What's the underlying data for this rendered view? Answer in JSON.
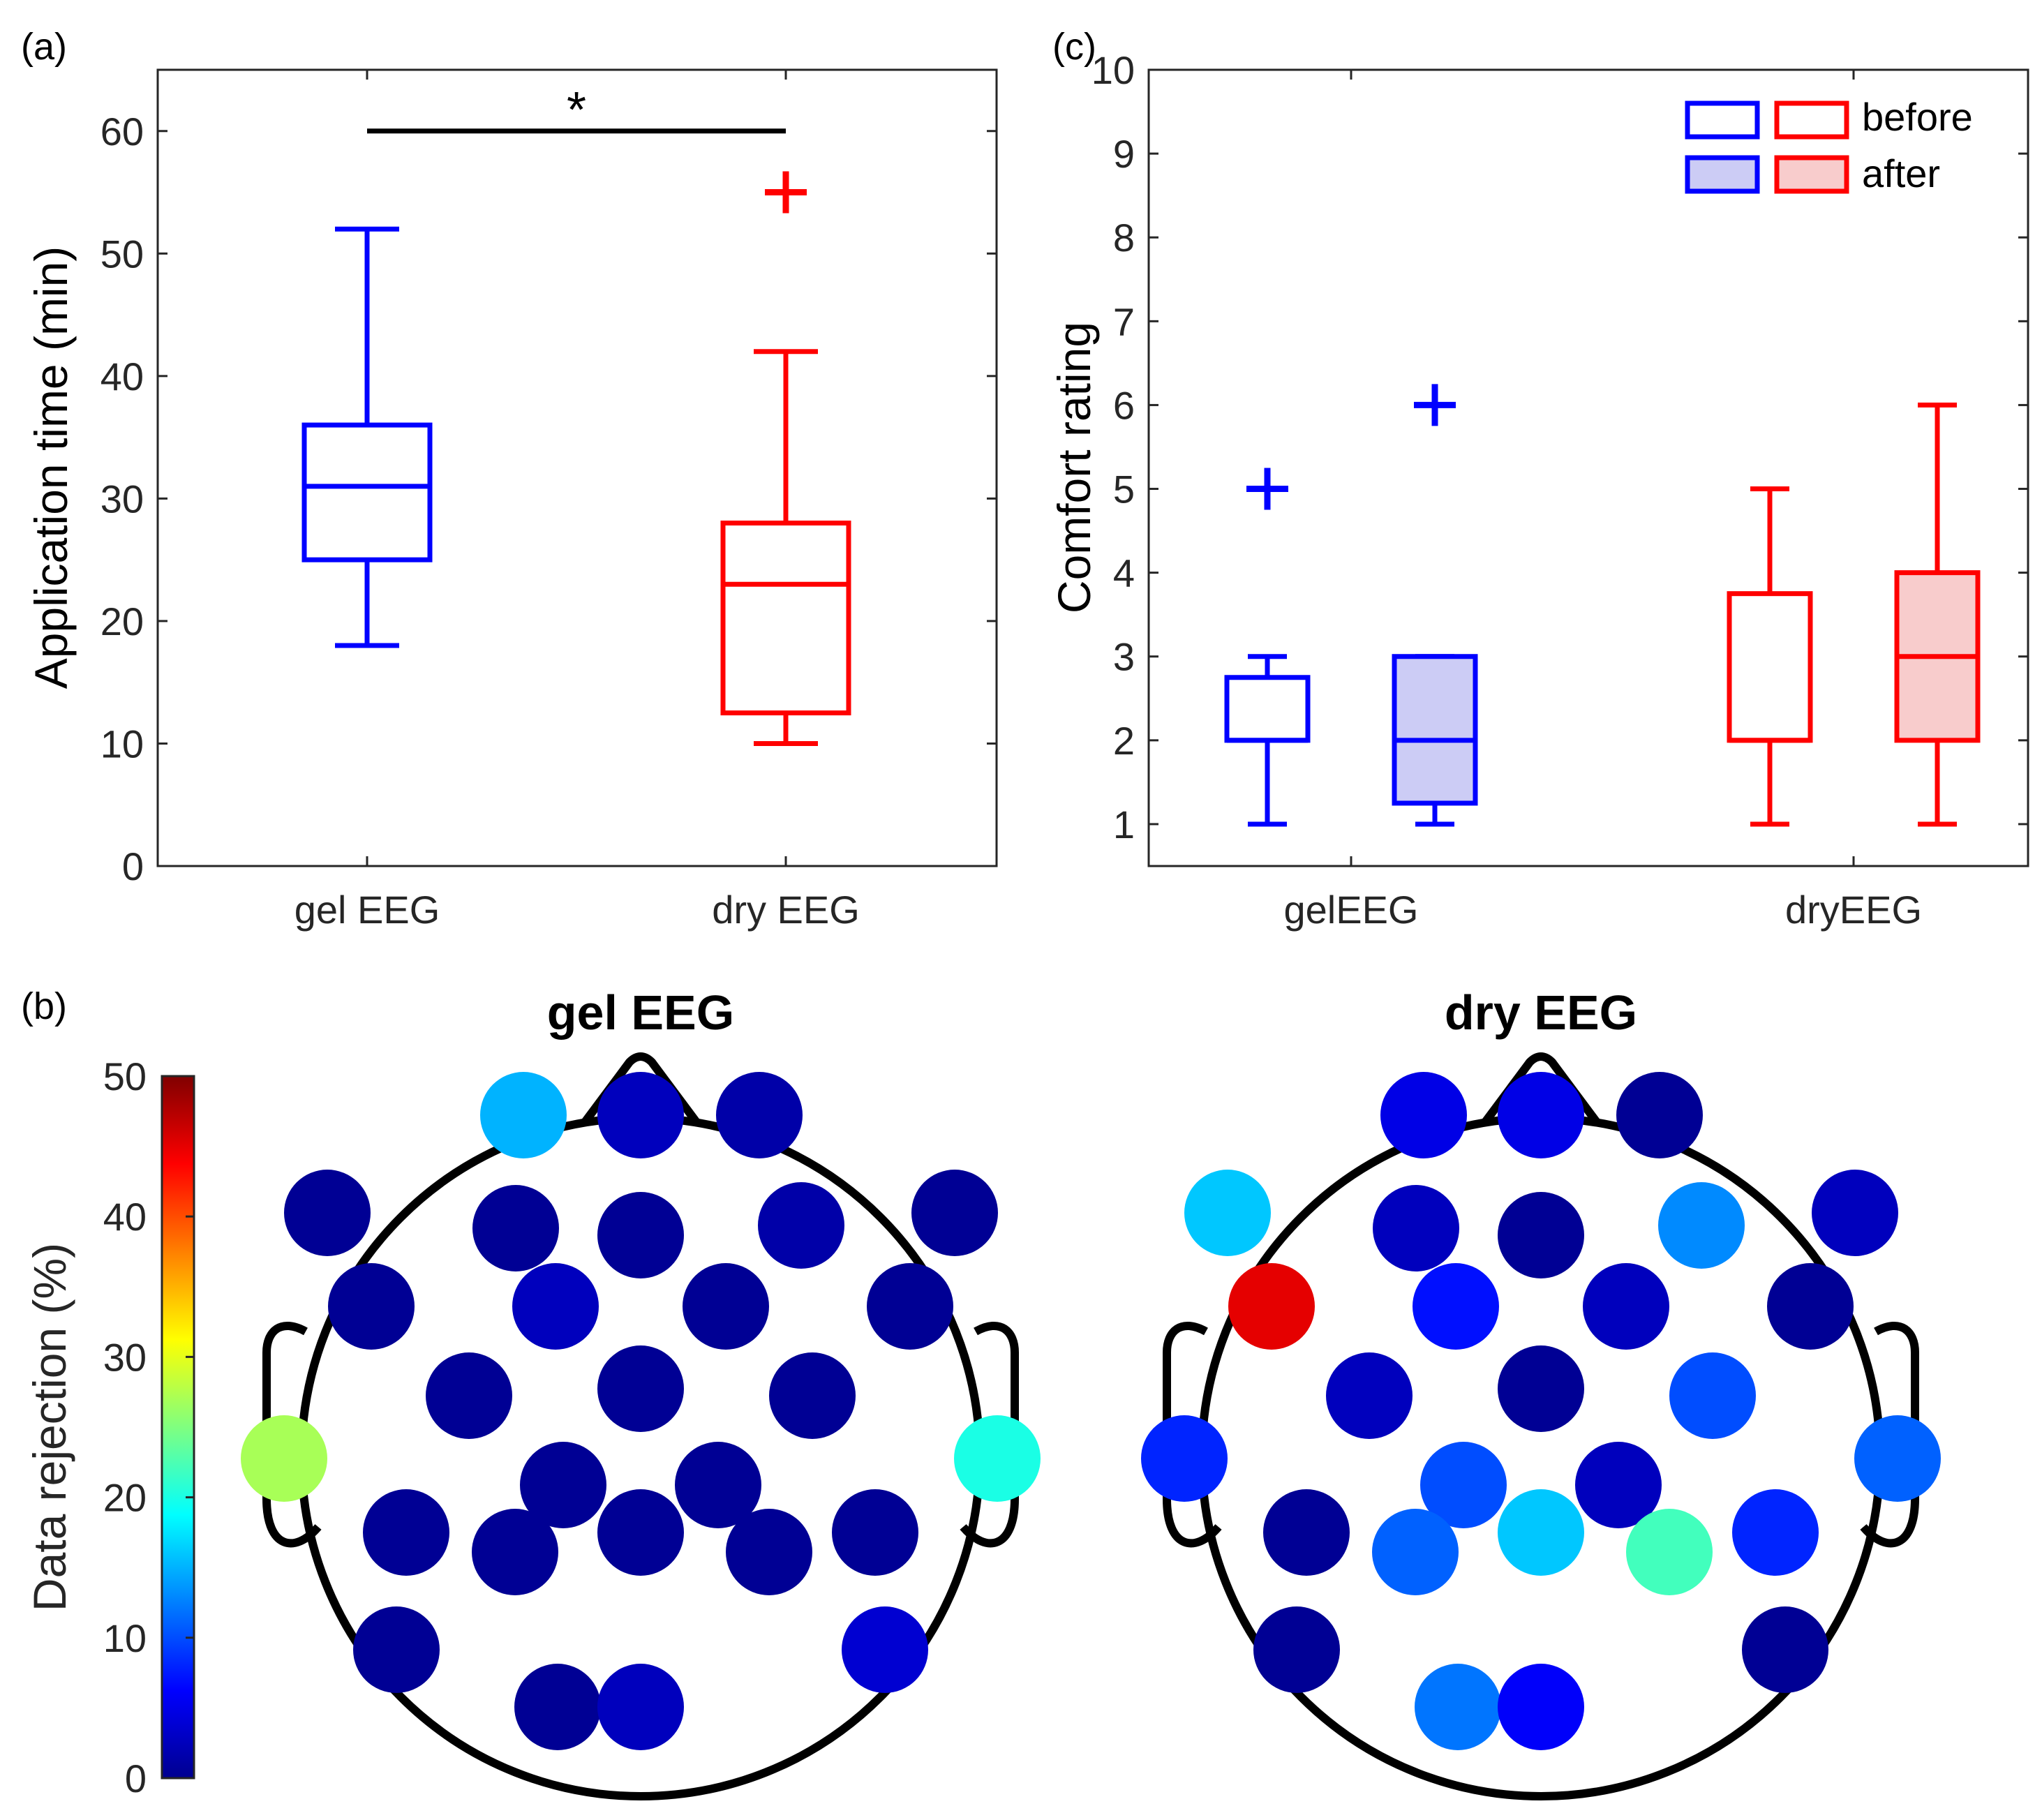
{
  "panel_labels": {
    "a": "(a)",
    "b": "(b)",
    "c": "(c)"
  },
  "colors": {
    "gel": "#0000ff",
    "dry": "#ff0000",
    "gel_fill": "#ccccf5",
    "dry_fill": "#f8cccc",
    "axis": "#262626",
    "head": "#000000"
  },
  "chart_data": [
    {
      "id": "a",
      "type": "box",
      "title": "",
      "ylabel": "Application time (min)",
      "ylim": [
        0,
        65
      ],
      "yticks": [
        0,
        10,
        20,
        30,
        40,
        50,
        60
      ],
      "categories": [
        "gel EEG",
        "dry EEG"
      ],
      "significance": {
        "label": "*",
        "between": [
          "gel EEG",
          "dry EEG"
        ],
        "y": 60
      },
      "boxes": [
        {
          "category": "gel EEG",
          "color": "blue",
          "whisker_low": 18,
          "q1": 25,
          "median": 31,
          "q3": 36,
          "whisker_high": 52,
          "outliers": []
        },
        {
          "category": "dry EEG",
          "color": "red",
          "whisker_low": 10,
          "q1": 12.5,
          "median": 23,
          "q3": 28,
          "whisker_high": 42,
          "outliers": [
            55
          ]
        }
      ]
    },
    {
      "id": "c",
      "type": "box",
      "title": "",
      "ylabel": "Comfort rating",
      "ylim": [
        0.5,
        10
      ],
      "yticks": [
        1,
        2,
        3,
        4,
        5,
        6,
        7,
        8,
        9,
        10
      ],
      "categories": [
        "gelEEG",
        "dryEEG"
      ],
      "legend": {
        "position": "top-right",
        "entries": [
          "before",
          "after"
        ]
      },
      "boxes": [
        {
          "category": "gelEEG",
          "condition": "before",
          "color": "blue",
          "filled": false,
          "whisker_low": 1,
          "q1": 2,
          "median": 2,
          "q3": 2.75,
          "whisker_high": 3,
          "outliers": [
            5
          ]
        },
        {
          "category": "gelEEG",
          "condition": "after",
          "color": "blue",
          "filled": true,
          "whisker_low": 1,
          "q1": 1.25,
          "median": 2,
          "q3": 3,
          "whisker_high": 3,
          "outliers": [
            6
          ]
        },
        {
          "category": "dryEEG",
          "condition": "before",
          "color": "red",
          "filled": false,
          "whisker_low": 1,
          "q1": 2,
          "median": 2,
          "q3": 3.75,
          "whisker_high": 5,
          "outliers": []
        },
        {
          "category": "dryEEG",
          "condition": "after",
          "color": "red",
          "filled": true,
          "whisker_low": 1,
          "q1": 2,
          "median": 3,
          "q3": 4,
          "whisker_high": 6,
          "outliers": []
        }
      ]
    },
    {
      "id": "b",
      "type": "heatmap",
      "title": "",
      "colorbar": {
        "label": "Data rejection (%)",
        "range": [
          0,
          50
        ],
        "ticks": [
          0,
          10,
          20,
          30,
          40,
          50
        ],
        "colormap": "jet"
      },
      "topoplots": [
        {
          "title": "gel EEG",
          "electrode_values": [
            15,
            3,
            2,
            1,
            1,
            1,
            2,
            1,
            1,
            3,
            1,
            1,
            1,
            1,
            1,
            27,
            20,
            1,
            1,
            1,
            1,
            1,
            1,
            1,
            1,
            4,
            1,
            3
          ]
        },
        {
          "title": "dry EEG",
          "electrode_values": [
            5,
            5,
            1,
            16,
            3,
            1,
            13,
            3,
            45,
            7,
            3,
            1,
            3,
            1,
            10,
            8,
            11,
            10,
            3,
            1,
            11,
            16,
            22,
            8,
            1,
            1,
            12,
            6
          ]
        }
      ]
    }
  ]
}
